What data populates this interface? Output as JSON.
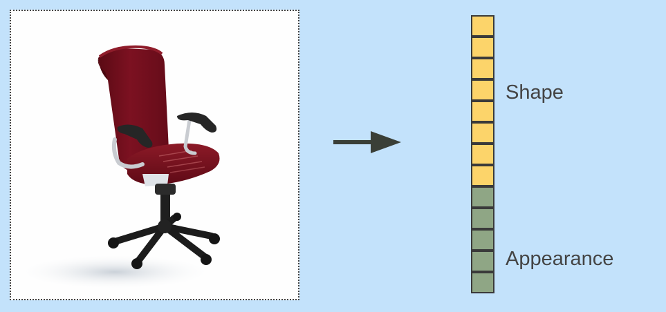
{
  "diagram": {
    "background_color": "#c3e2fb",
    "input_image": {
      "subject": "office chair",
      "seat_color": "#7a0f1d",
      "frame_color": "#2a2a2a"
    },
    "arrow": {
      "color": "#3a3f37",
      "direction": "right"
    },
    "latent_vector": {
      "segments": [
        {
          "label": "Shape",
          "cells": 8,
          "color": "#fcd46a"
        },
        {
          "label": "Appearance",
          "cells": 5,
          "color": "#8fa685"
        }
      ],
      "border_color": "#3a3a3a"
    }
  }
}
